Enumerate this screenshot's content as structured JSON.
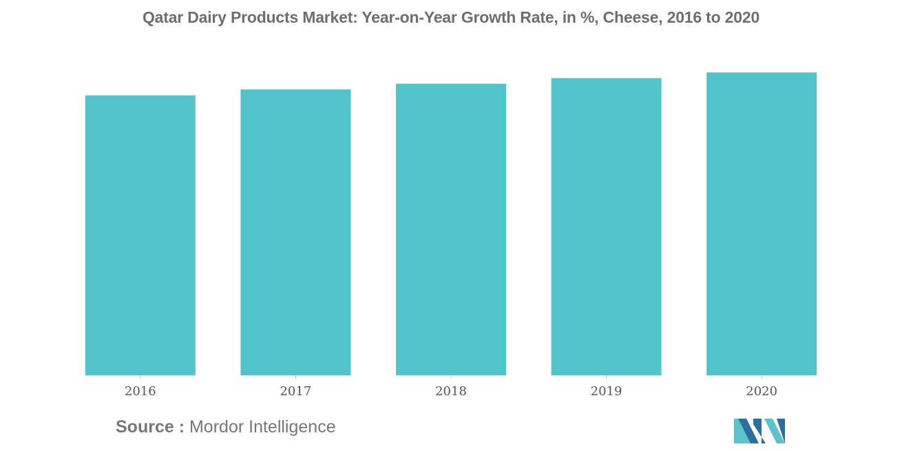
{
  "title": "Qatar Dairy Products Market: Year-on-Year Growth Rate, in %, Cheese, 2016 to 2020",
  "source": {
    "label": "Source :",
    "text": "Mordor Intelligence"
  },
  "logo": {
    "icon": "mordor-intelligence-logo"
  },
  "colors": {
    "bar": "#53c3ca",
    "logo_dark": "#2b6f9d",
    "logo_light": "#5cc3cc"
  },
  "chart_data": {
    "type": "bar",
    "title": "Qatar Dairy Products Market: Year-on-Year Growth Rate, in %, Cheese, 2016 to 2020",
    "categories": [
      "2016",
      "2017",
      "2018",
      "2019",
      "2020"
    ],
    "values": [
      8.4,
      8.58,
      8.75,
      8.92,
      9.09
    ],
    "xlabel": "",
    "ylabel": "",
    "ylim": [
      0,
      9.3
    ],
    "grid": false,
    "legend": "none"
  }
}
